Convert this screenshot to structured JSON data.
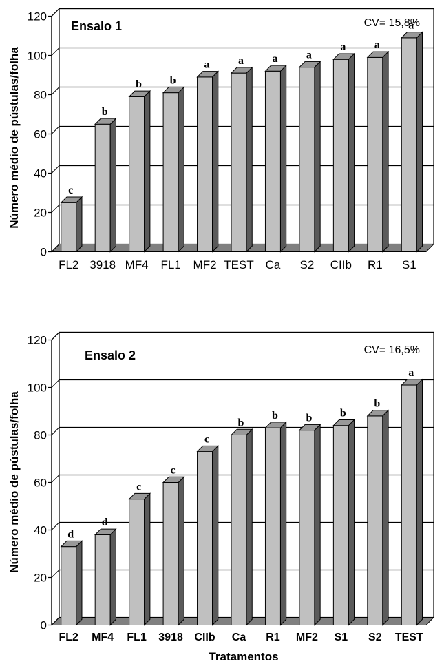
{
  "chart_data": [
    {
      "type": "bar",
      "title": "Ensalo 1",
      "annotation": "CV= 15,8%",
      "ylabel": "Número médio de pústulas/folha",
      "xlabel": "",
      "ylim": [
        0,
        120
      ],
      "yticks": [
        "0",
        "20",
        "40",
        "60",
        "80",
        "100",
        "120"
      ],
      "grid": true,
      "categories": [
        "FL2",
        "3918",
        "MF4",
        "FL1",
        "MF2",
        "TEST",
        "Ca",
        "S2",
        "CIIb",
        "R1",
        "S1"
      ],
      "values": [
        25,
        65,
        79,
        81,
        89,
        91,
        92,
        94,
        98,
        99,
        109
      ],
      "letters": [
        "c",
        "b",
        "b",
        "b",
        "a",
        "a",
        "a",
        "a",
        "a",
        "a",
        "a"
      ]
    },
    {
      "type": "bar",
      "title": "Ensalo 2",
      "annotation": "CV= 16,5%",
      "ylabel": "Número médio de pústulas/folha",
      "xlabel": "Tratamentos",
      "ylim": [
        0,
        120
      ],
      "yticks": [
        "0",
        "20",
        "40",
        "60",
        "80",
        "100",
        "120"
      ],
      "grid": true,
      "categories": [
        "FL2",
        "MF4",
        "FL1",
        "3918",
        "CIIb",
        "Ca",
        "R1",
        "MF2",
        "S1",
        "S2",
        "TEST"
      ],
      "values": [
        33,
        38,
        53,
        60,
        73,
        80,
        83,
        82,
        84,
        88,
        101
      ],
      "letters": [
        "d",
        "d",
        "c",
        "c",
        "c",
        "b",
        "b",
        "b",
        "b",
        "b",
        "a"
      ]
    }
  ]
}
